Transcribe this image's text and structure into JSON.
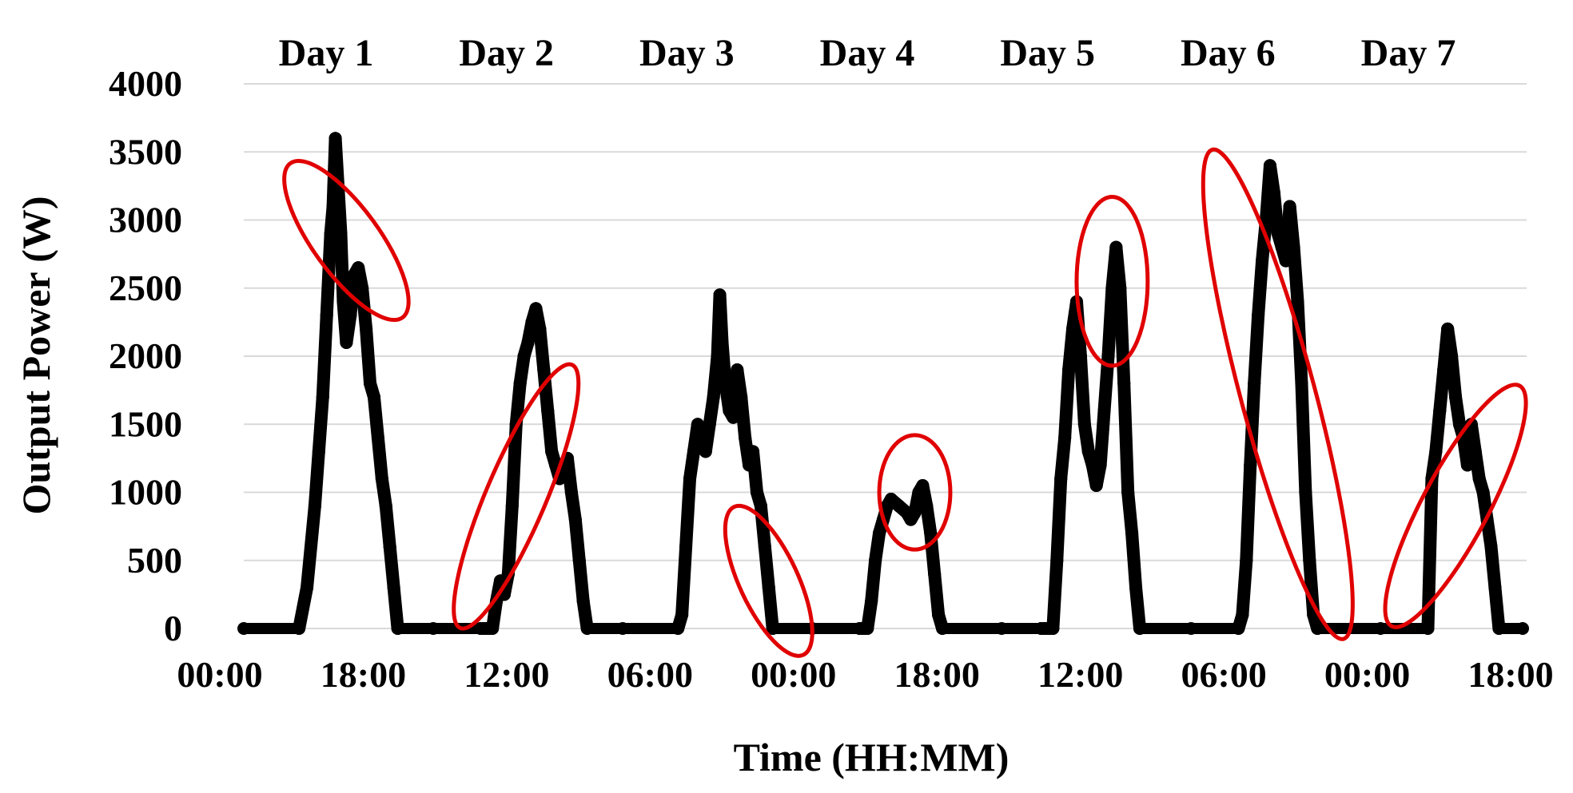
{
  "chart_data": {
    "type": "scatter",
    "title": "",
    "xlabel": "Time (HH:MM)",
    "ylabel": "Output Power (W)",
    "ylim": [
      0,
      4000
    ],
    "yticks": [
      0,
      500,
      1000,
      1500,
      2000,
      2500,
      3000,
      3500,
      4000
    ],
    "xticks": [
      "00:00",
      "18:00",
      "12:00",
      "06:00",
      "00:00",
      "18:00",
      "12:00",
      "06:00",
      "00:00",
      "18:00"
    ],
    "xrange_hours": [
      0,
      162
    ],
    "grid": true,
    "marker_color": "#000000",
    "highlight_color": "#e00000",
    "day_labels": [
      "Day 1",
      "Day 2",
      "Day 3",
      "Day 4",
      "Day 5",
      "Day 6",
      "Day 7"
    ],
    "series": [
      {
        "points": [
          [
            0,
            0
          ],
          [
            7,
            0
          ],
          [
            8,
            300
          ],
          [
            9,
            900
          ],
          [
            9.5,
            1300
          ],
          [
            10,
            1700
          ],
          [
            10.5,
            2300
          ],
          [
            11,
            2900
          ],
          [
            11.3,
            3100
          ],
          [
            11.6,
            3600
          ],
          [
            12,
            3200
          ],
          [
            12.3,
            2900
          ],
          [
            12.6,
            2400
          ],
          [
            13,
            2100
          ],
          [
            13.5,
            2300
          ],
          [
            14,
            2600
          ],
          [
            14.5,
            2650
          ],
          [
            15,
            2500
          ],
          [
            15.5,
            2200
          ],
          [
            16,
            1800
          ],
          [
            16.5,
            1700
          ],
          [
            17,
            1400
          ],
          [
            17.5,
            1100
          ],
          [
            18,
            900
          ],
          [
            18.5,
            600
          ],
          [
            19,
            300
          ],
          [
            19.5,
            0
          ],
          [
            24,
            0
          ],
          [
            30,
            0
          ],
          [
            31.5,
            0
          ],
          [
            32,
            200
          ],
          [
            32.5,
            350
          ],
          [
            33,
            250
          ],
          [
            33.5,
            400
          ],
          [
            34,
            900
          ],
          [
            34.5,
            1500
          ],
          [
            35,
            1800
          ],
          [
            35.5,
            2000
          ],
          [
            36,
            2100
          ],
          [
            36.5,
            2250
          ],
          [
            37,
            2350
          ],
          [
            37.5,
            2200
          ],
          [
            38,
            1900
          ],
          [
            38.5,
            1600
          ],
          [
            39,
            1300
          ],
          [
            39.5,
            1200
          ],
          [
            40,
            1100
          ],
          [
            41,
            1250
          ],
          [
            41.5,
            1000
          ],
          [
            42,
            800
          ],
          [
            42.5,
            500
          ],
          [
            43,
            200
          ],
          [
            43.5,
            0
          ],
          [
            48,
            0
          ],
          [
            55,
            0
          ],
          [
            55.5,
            100
          ],
          [
            56,
            600
          ],
          [
            56.5,
            1100
          ],
          [
            57,
            1300
          ],
          [
            57.5,
            1500
          ],
          [
            58,
            1450
          ],
          [
            58.5,
            1300
          ],
          [
            59,
            1500
          ],
          [
            59.5,
            1700
          ],
          [
            60,
            2000
          ],
          [
            60.3,
            2450
          ],
          [
            60.6,
            2100
          ],
          [
            61,
            1800
          ],
          [
            61.5,
            1600
          ],
          [
            62,
            1550
          ],
          [
            62.5,
            1900
          ],
          [
            63,
            1700
          ],
          [
            63.5,
            1400
          ],
          [
            64,
            1200
          ],
          [
            64.5,
            1300
          ],
          [
            65,
            1000
          ],
          [
            65.5,
            900
          ],
          [
            66,
            600
          ],
          [
            66.5,
            300
          ],
          [
            67,
            0
          ],
          [
            72,
            0
          ],
          [
            78,
            0
          ],
          [
            79,
            0
          ],
          [
            79.5,
            200
          ],
          [
            80,
            500
          ],
          [
            80.5,
            700
          ],
          [
            81,
            800
          ],
          [
            81.5,
            900
          ],
          [
            82,
            950
          ],
          [
            83,
            900
          ],
          [
            84,
            850
          ],
          [
            84.5,
            800
          ],
          [
            85,
            850
          ],
          [
            85.5,
            1000
          ],
          [
            86,
            1050
          ],
          [
            86.5,
            900
          ],
          [
            87,
            700
          ],
          [
            87.5,
            400
          ],
          [
            88,
            100
          ],
          [
            88.5,
            0
          ],
          [
            96,
            0
          ],
          [
            101,
            0
          ],
          [
            102.5,
            0
          ],
          [
            103,
            500
          ],
          [
            103.5,
            1100
          ],
          [
            104,
            1400
          ],
          [
            104.5,
            1900
          ],
          [
            105,
            2200
          ],
          [
            105.5,
            2400
          ],
          [
            106,
            2000
          ],
          [
            106.5,
            1500
          ],
          [
            107,
            1300
          ],
          [
            107.5,
            1200
          ],
          [
            108,
            1050
          ],
          [
            108.5,
            1200
          ],
          [
            109,
            1600
          ],
          [
            109.5,
            2000
          ],
          [
            110,
            2500
          ],
          [
            110.5,
            2800
          ],
          [
            111,
            2500
          ],
          [
            111.5,
            1800
          ],
          [
            112,
            1000
          ],
          [
            112.5,
            700
          ],
          [
            113,
            300
          ],
          [
            113.5,
            0
          ],
          [
            120,
            0
          ],
          [
            126,
            0
          ],
          [
            126.5,
            100
          ],
          [
            127,
            500
          ],
          [
            127.5,
            1200
          ],
          [
            128,
            1800
          ],
          [
            128.5,
            2300
          ],
          [
            129,
            2700
          ],
          [
            129.5,
            3000
          ],
          [
            130,
            3400
          ],
          [
            130.5,
            3200
          ],
          [
            131,
            2900
          ],
          [
            131.5,
            2800
          ],
          [
            132,
            2700
          ],
          [
            132.5,
            3100
          ],
          [
            133,
            2800
          ],
          [
            133.5,
            2400
          ],
          [
            134,
            1800
          ],
          [
            134.5,
            1000
          ],
          [
            135,
            500
          ],
          [
            135.5,
            100
          ],
          [
            136,
            0
          ],
          [
            144,
            0
          ],
          [
            150,
            0
          ],
          [
            150.5,
            1100
          ],
          [
            151,
            1300
          ],
          [
            151.5,
            1600
          ],
          [
            152,
            1900
          ],
          [
            152.5,
            2200
          ],
          [
            153,
            2000
          ],
          [
            153.5,
            1700
          ],
          [
            154,
            1500
          ],
          [
            154.5,
            1400
          ],
          [
            155,
            1200
          ],
          [
            155.5,
            1500
          ],
          [
            156,
            1300
          ],
          [
            156.5,
            1100
          ],
          [
            157,
            1000
          ],
          [
            157.5,
            800
          ],
          [
            158,
            600
          ],
          [
            158.5,
            300
          ],
          [
            159,
            0
          ],
          [
            162,
            0
          ]
        ]
      }
    ],
    "highlight_ellipses": [
      {
        "cx": 13,
        "cy": 2850,
        "rx": 4.2,
        "ry": 700,
        "rotate": -36
      },
      {
        "cx": 34.5,
        "cy": 970,
        "rx": 3.8,
        "ry": 1050,
        "rotate": 23
      },
      {
        "cx": 66.5,
        "cy": 350,
        "rx": 3.7,
        "ry": 600,
        "rotate": -25
      },
      {
        "cx": 85,
        "cy": 1000,
        "rx": 4.5,
        "ry": 420,
        "rotate": 0
      },
      {
        "cx": 110,
        "cy": 2550,
        "rx": 4.5,
        "ry": 620,
        "rotate": 0
      },
      {
        "cx": 131,
        "cy": 1720,
        "rx": 4.7,
        "ry": 1860,
        "rotate": -15
      },
      {
        "cx": 153.5,
        "cy": 900,
        "rx": 4.2,
        "ry": 1000,
        "rotate": 28
      }
    ]
  }
}
